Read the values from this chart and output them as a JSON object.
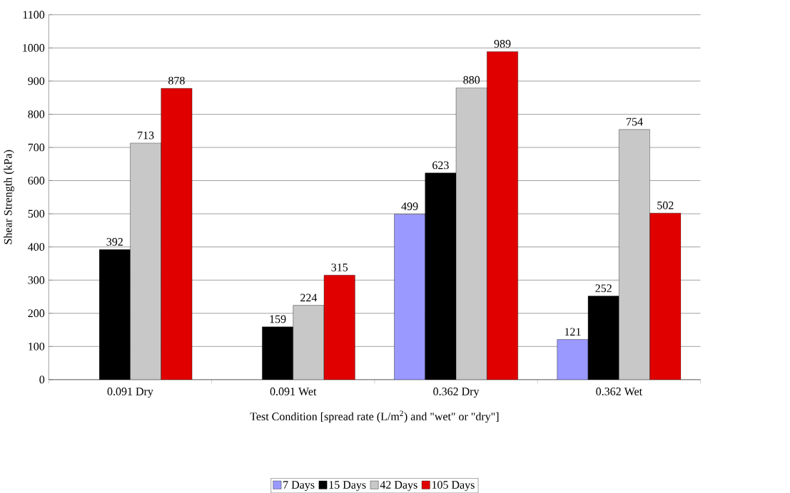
{
  "chart_data": {
    "type": "bar",
    "xlabel": "Test Condition [spread rate (L/m$^{2}$) and \"wet\" or \"dry\"]",
    "ylabel": "Shear Strength (kPa)",
    "categories": [
      "0.091 Dry",
      "0.091 Wet",
      "0.362 Dry",
      "0.362 Wet"
    ],
    "series": [
      {
        "name": "7 Days",
        "color": "#9999ff",
        "values": [
          null,
          null,
          499,
          121
        ]
      },
      {
        "name": "15 Days",
        "color": "#000000",
        "values": [
          392,
          159,
          623,
          252
        ]
      },
      {
        "name": "42 Days",
        "color": "#c8c8c8",
        "values": [
          713,
          224,
          880,
          754
        ]
      },
      {
        "name": "105 Days",
        "color": "#e00000",
        "values": [
          878,
          315,
          989,
          502
        ]
      }
    ],
    "ylim": [
      0,
      1100
    ],
    "yticks": [
      0,
      100,
      200,
      300,
      400,
      500,
      600,
      700,
      800,
      900,
      1000,
      1100
    ],
    "grid": "y",
    "legend": "bottom",
    "data_labels": true
  }
}
